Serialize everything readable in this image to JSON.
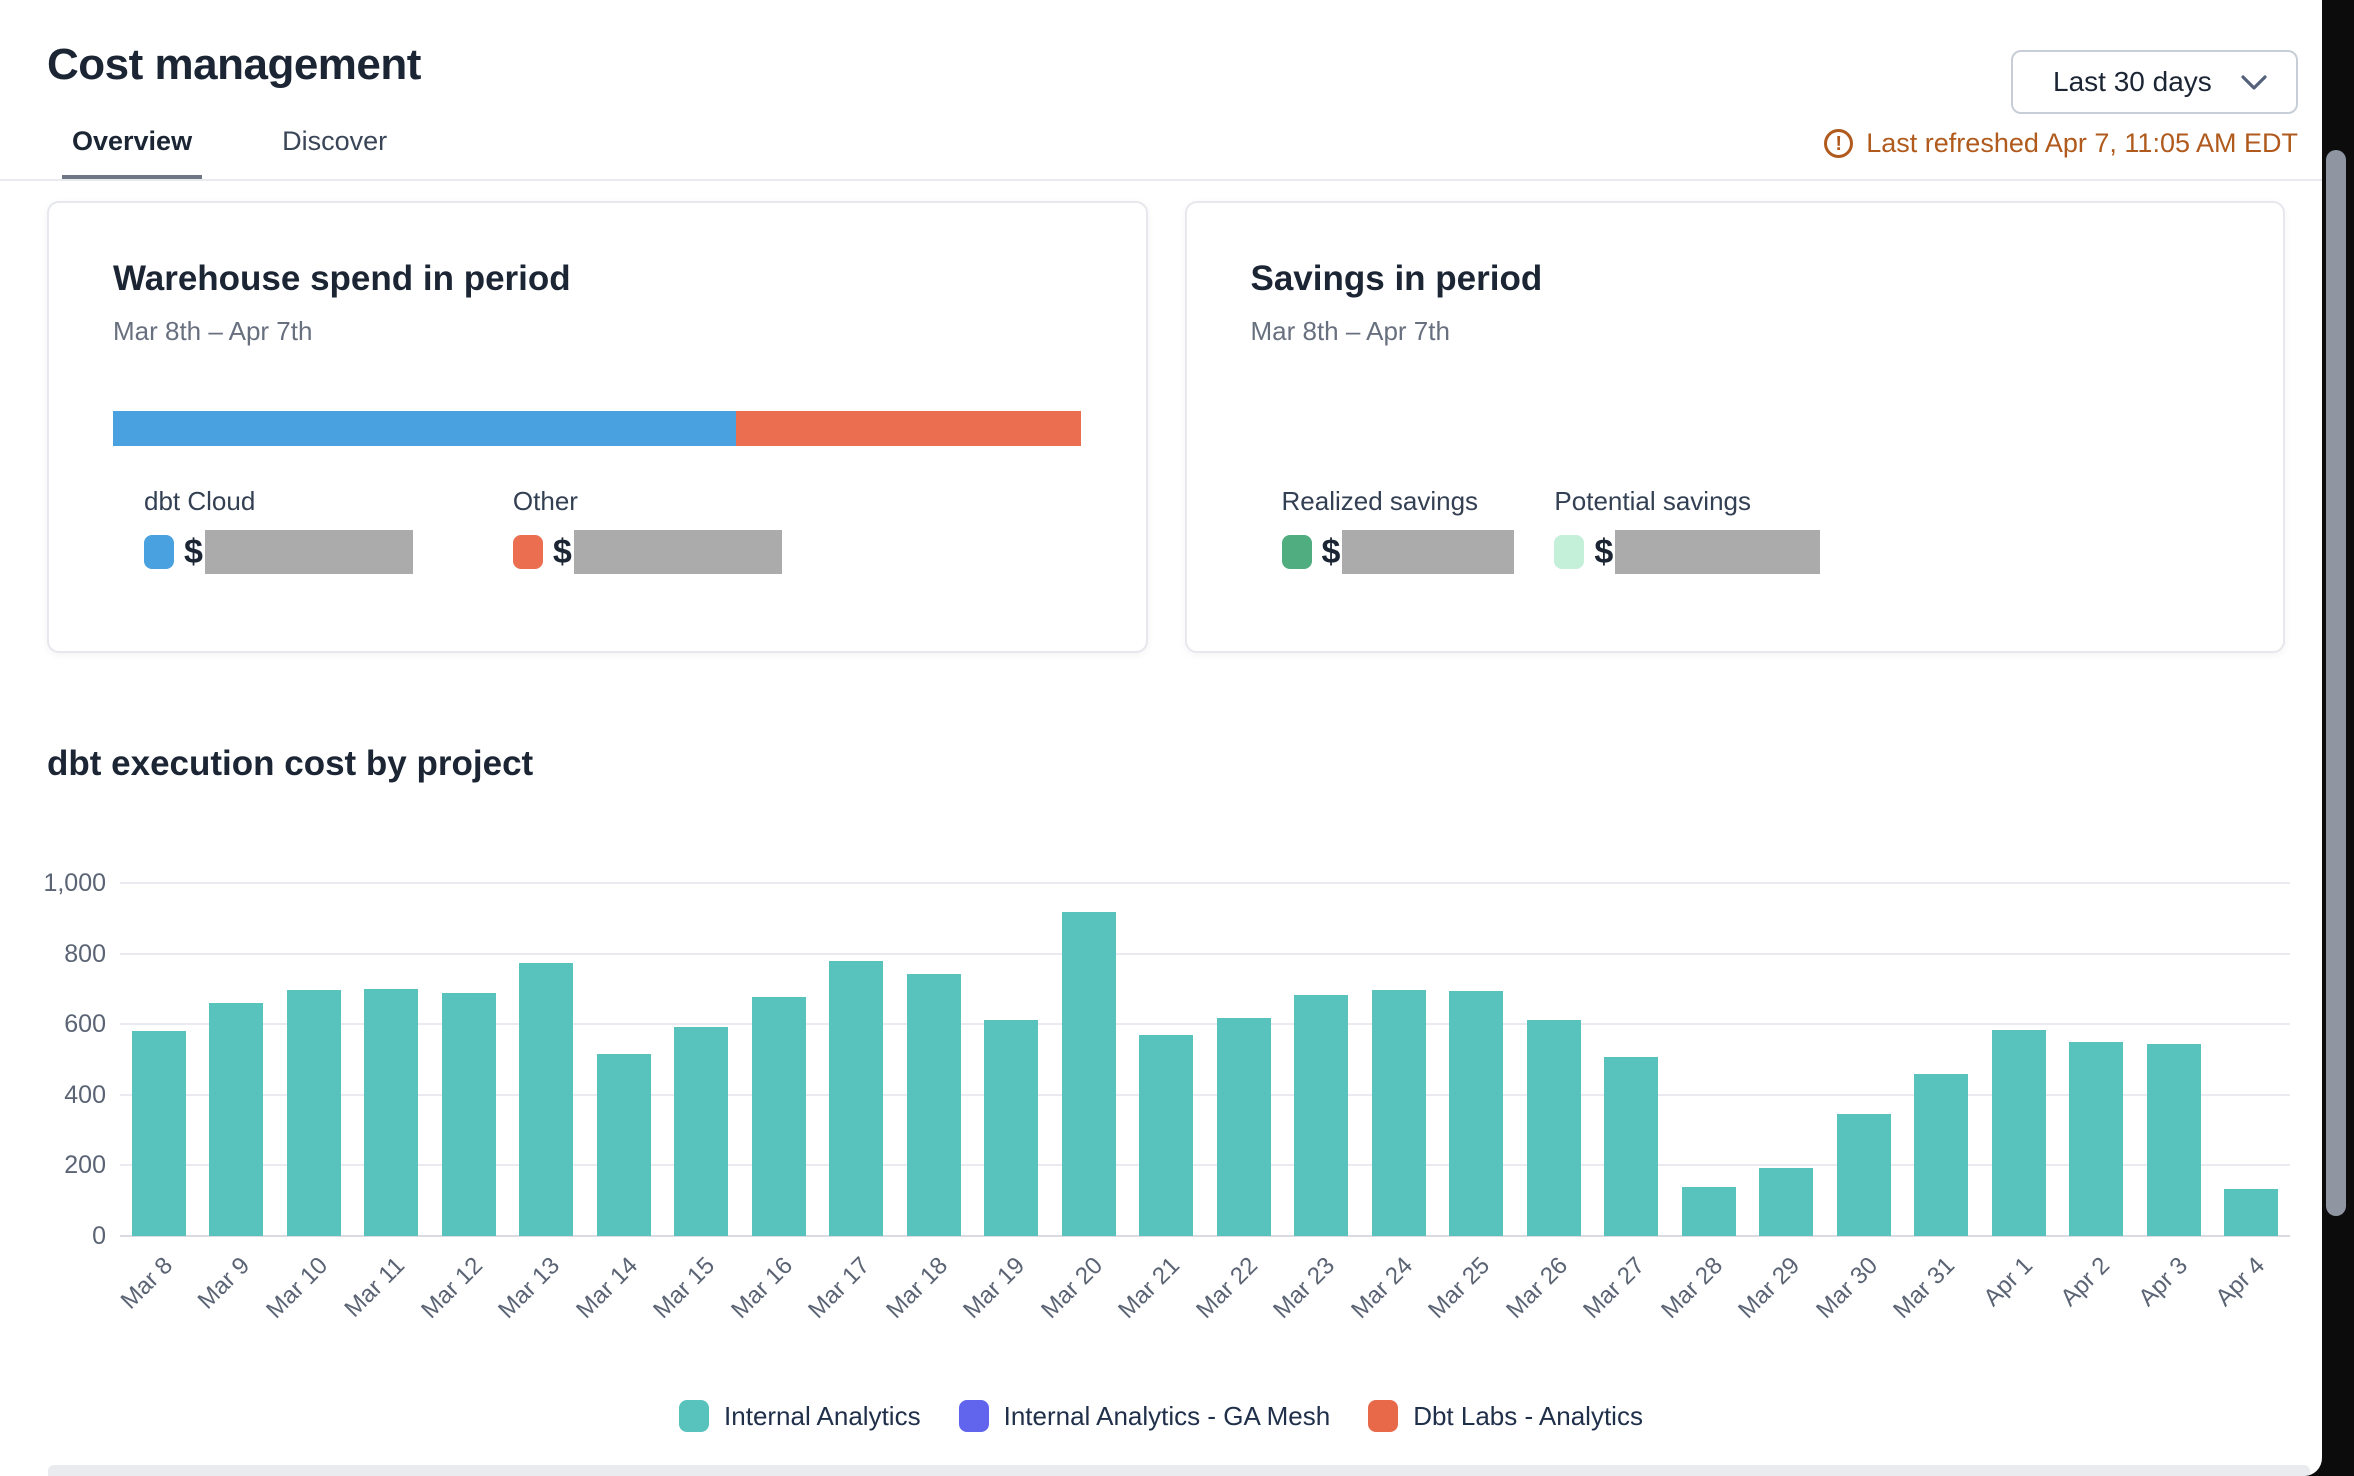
{
  "header": {
    "title": "Cost management",
    "tabs": [
      {
        "label": "Overview",
        "active": true
      },
      {
        "label": "Discover",
        "active": false
      }
    ],
    "period_selector": {
      "value": "Last 30 days"
    },
    "refresh_notice": "Last refreshed Apr 7, 11:05 AM EDT",
    "refresh_color": "#b05a1d"
  },
  "cards": {
    "warehouse_spend": {
      "title": "Warehouse spend in period",
      "subtitle": "Mar 8th – Apr 7th",
      "stacked_bar": {
        "segments": [
          {
            "name": "dbt Cloud",
            "color": "#4aa1e0",
            "percent": 64.3
          },
          {
            "name": "Other",
            "color": "#eb6e50",
            "percent": 35.7
          }
        ]
      },
      "legend": [
        {
          "label": "dbt Cloud",
          "color": "#4aa1e0",
          "value_prefix": "$",
          "value_redacted": true
        },
        {
          "label": "Other",
          "color": "#eb6e50",
          "value_prefix": "$",
          "value_redacted": true
        }
      ]
    },
    "savings": {
      "title": "Savings in period",
      "subtitle": "Mar 8th – Apr 7th",
      "legend": [
        {
          "label": "Realized savings",
          "color": "#50ad80",
          "value_prefix": "$",
          "value_redacted": true
        },
        {
          "label": "Potential savings",
          "color": "#c4efd8",
          "value_prefix": "$",
          "value_redacted": true
        }
      ]
    }
  },
  "chart_section": {
    "title": "dbt execution cost by project"
  },
  "chart_data": {
    "type": "bar",
    "title": "dbt execution cost by project",
    "categories": [
      "Mar 8",
      "Mar 9",
      "Mar 10",
      "Mar 11",
      "Mar 12",
      "Mar 13",
      "Mar 14",
      "Mar 15",
      "Mar 16",
      "Mar 17",
      "Mar 18",
      "Mar 19",
      "Mar 20",
      "Mar 21",
      "Mar 22",
      "Mar 23",
      "Mar 24",
      "Mar 25",
      "Mar 26",
      "Mar 27",
      "Mar 28",
      "Mar 29",
      "Mar 30",
      "Mar 31",
      "Apr 1",
      "Apr 2",
      "Apr 3",
      "Apr 4"
    ],
    "series": [
      {
        "name": "Internal Analytics",
        "color": "#58c3bd",
        "values": [
          580,
          660,
          697,
          701,
          688,
          774,
          517,
          592,
          678,
          780,
          741,
          613,
          917,
          570,
          618,
          684,
          697,
          695,
          611,
          508,
          140,
          192,
          346,
          460,
          585,
          550,
          543,
          133
        ]
      },
      {
        "name": "Internal Analytics - GA Mesh",
        "color": "#6165ee",
        "values": [
          0,
          0,
          0,
          0,
          0,
          0,
          0,
          0,
          0,
          0,
          0,
          0,
          0,
          0,
          0,
          0,
          0,
          0,
          0,
          0,
          0,
          0,
          0,
          0,
          0,
          0,
          0,
          0
        ]
      },
      {
        "name": "Dbt Labs - Analytics",
        "color": "#e8684a",
        "values": [
          0,
          0,
          0,
          0,
          0,
          0,
          0,
          0,
          0,
          0,
          0,
          0,
          0,
          0,
          0,
          0,
          0,
          0,
          0,
          0,
          0,
          0,
          0,
          0,
          0,
          0,
          0,
          0
        ]
      }
    ],
    "xlabel": "",
    "ylabel": "",
    "ylim": [
      0,
      1000
    ],
    "yticks": [
      0,
      200,
      400,
      600,
      800,
      1000
    ],
    "grid": true,
    "legend_position": "bottom"
  }
}
